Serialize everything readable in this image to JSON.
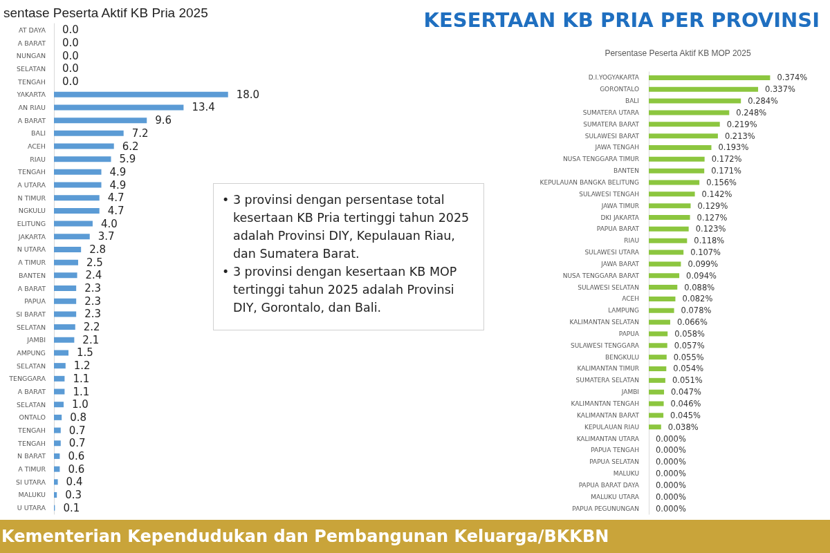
{
  "chart_data": [
    {
      "type": "bar",
      "orientation": "horizontal",
      "title": "sentase Peserta Aktif KB Pria 2025",
      "categories": [
        "AT DAYA",
        "A BARAT",
        "NUNGAN",
        "SELATAN",
        "TENGAH",
        "YAKARTA",
        "AN RIAU",
        "A BARAT",
        "BALI",
        "ACEH",
        "RIAU",
        "TENGAH",
        "A UTARA",
        "N TIMUR",
        "NGKULU",
        "ELITUNG",
        "JAKARTA",
        "N UTARA",
        "A TIMUR",
        "BANTEN",
        "A BARAT",
        "PAPUA",
        "SI BARAT",
        "SELATAN",
        "JAMBI",
        "AMPUNG",
        "SELATAN",
        "TENGGARA",
        "A BARAT",
        "SELATAN",
        "ONTALO",
        "TENGAH",
        "TENGAH",
        "N BARAT",
        "A TIMUR",
        "SI UTARA",
        "MALUKU",
        "U UTARA"
      ],
      "values": [
        0,
        0,
        0,
        0,
        0,
        18.0,
        13.4,
        9.6,
        7.2,
        6.2,
        5.9,
        4.9,
        4.9,
        4.7,
        4.7,
        4.0,
        3.7,
        2.8,
        2.5,
        2.4,
        2.3,
        2.3,
        2.3,
        2.2,
        2.1,
        1.5,
        1.2,
        1.1,
        1.1,
        1.0,
        0.8,
        0.7,
        0.7,
        0.6,
        0.6,
        0.4,
        0.3,
        0.1
      ],
      "value_labels": [
        "0.0",
        "0.0",
        "0.0",
        "0.0",
        "0.0",
        "18.0",
        "13.4",
        "9.6",
        "7.2",
        "6.2",
        "5.9",
        "4.9",
        "4.9",
        "4.7",
        "4.7",
        "4.0",
        "3.7",
        "2.8",
        "2.5",
        "2.4",
        "2.3",
        "2.3",
        "2.3",
        "2.2",
        "2.1",
        "1.5",
        "1.2",
        "1.1",
        "1.1",
        "1.0",
        "0.8",
        "0.7",
        "0.7",
        "0.6",
        "0.6",
        "0.4",
        "0.3",
        "0.1"
      ],
      "color": "#5b9bd5",
      "tick_labels": "y"
    },
    {
      "type": "other",
      "title": "KESERTAAN KB PRIA PER PROVINSI",
      "annotations": [
        "• 3 provinsi dengan persentase total kesertaan KB Pria tertinggi tahun 2025 adalah Provinsi DIY, Kepulauan Riau, dan Sumatera Barat.",
        "• 3 provinsi dengan kesertaan KB MOP tertinggi tahun 2025 adalah Provinsi DIY, Gorontalo, dan Bali.",
        "Kementerian Kependudukan dan Pembangunan Keluarga/BKKBN"
      ]
    },
    {
      "type": "bar",
      "orientation": "horizontal",
      "title": "Persentase Peserta Aktif KB MOP 2025",
      "categories": [
        "D.I.YOGYAKARTA",
        "GORONTALO",
        "BALI",
        "SUMATERA UTARA",
        "SUMATERA BARAT",
        "SULAWESI BARAT",
        "JAWA TENGAH",
        "NUSA TENGGARA TIMUR",
        "BANTEN",
        "KEPULAUAN BANGKA BELITUNG",
        "SULAWESI TENGAH",
        "JAWA TIMUR",
        "DKI JAKARTA",
        "PAPUA BARAT",
        "RIAU",
        "SULAWESI UTARA",
        "JAWA BARAT",
        "NUSA TENGGARA BARAT",
        "SULAWESI SELATAN",
        "ACEH",
        "LAMPUNG",
        "KALIMANTAN SELATAN",
        "PAPUA",
        "SULAWESI TENGGARA",
        "BENGKULU",
        "KALIMANTAN TIMUR",
        "SUMATERA SELATAN",
        "JAMBI",
        "KALIMANTAN TENGAH",
        "KALIMANTAN BARAT",
        "KEPULAUAN RIAU",
        "KALIMANTAN UTARA",
        "PAPUA TENGAH",
        "PAPUA SELATAN",
        "MALUKU",
        "PAPUA BARAT DAYA",
        "MALUKU UTARA",
        "PAPUA PEGUNUNGAN"
      ],
      "values": [
        0.374,
        0.337,
        0.284,
        0.248,
        0.219,
        0.213,
        0.193,
        0.172,
        0.171,
        0.156,
        0.142,
        0.129,
        0.127,
        0.123,
        0.118,
        0.107,
        0.099,
        0.094,
        0.088,
        0.082,
        0.078,
        0.066,
        0.058,
        0.057,
        0.055,
        0.054,
        0.051,
        0.047,
        0.046,
        0.045,
        0.038,
        0,
        0,
        0,
        0,
        0,
        0,
        0
      ],
      "value_labels": [
        "0.374%",
        "0.337%",
        "0.284%",
        "0.248%",
        "0.219%",
        "0.213%",
        "0.193%",
        "0.172%",
        "0.171%",
        "0.156%",
        "0.142%",
        "0.129%",
        "0.127%",
        "0.123%",
        "0.118%",
        "0.107%",
        "0.099%",
        "0.094%",
        "0.088%",
        "0.082%",
        "0.078%",
        "0.066%",
        "0.058%",
        "0.057%",
        "0.055%",
        "0.054%",
        "0.051%",
        "0.047%",
        "0.046%",
        "0.045%",
        "0.038%",
        "0.000%",
        "0.000%",
        "0.000%",
        "0.000%",
        "0.000%",
        "0.000%",
        "0.000%"
      ],
      "color": "#8cc63f",
      "tick_labels": "y"
    }
  ]
}
